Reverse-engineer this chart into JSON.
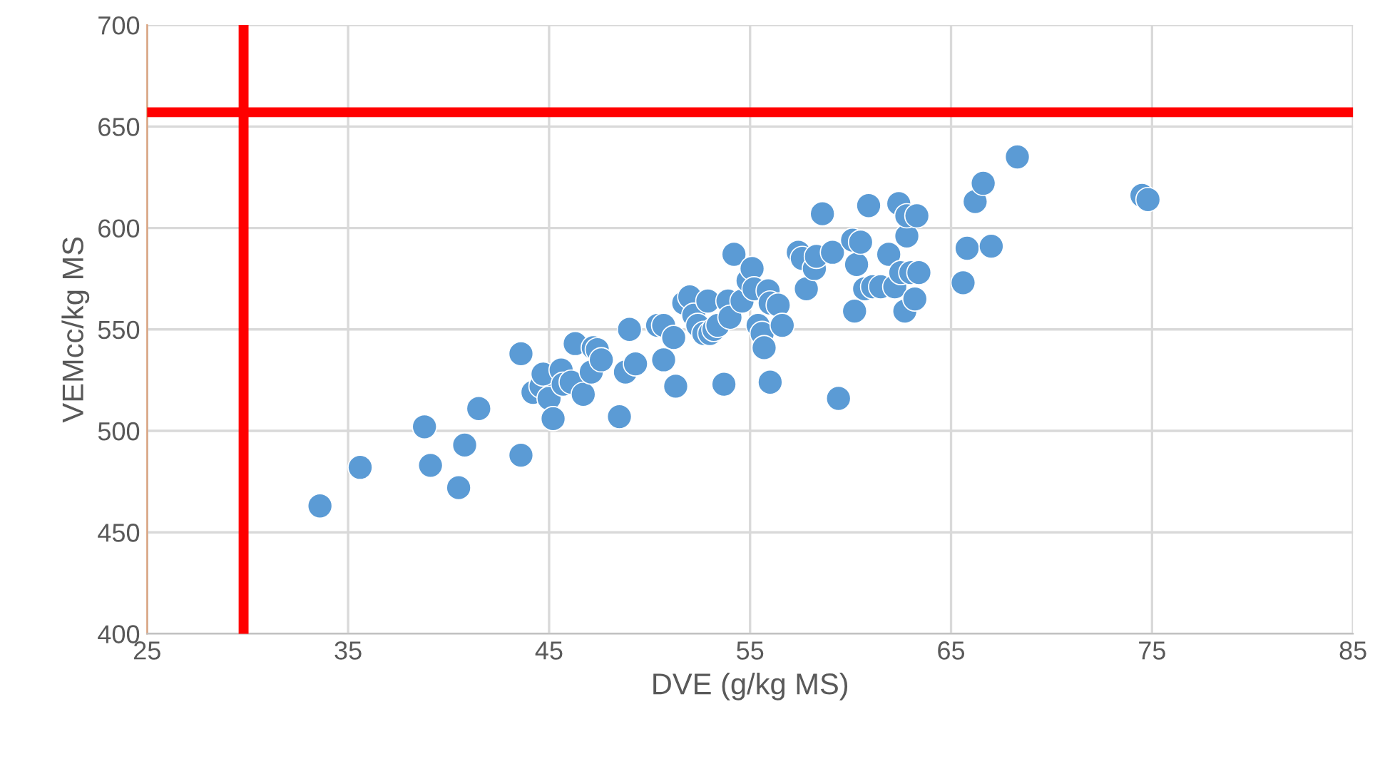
{
  "chart_data": {
    "type": "scatter",
    "xlabel": "DVE (g/kg MS)",
    "ylabel": "VEMcc/kg MS",
    "x": [
      33.6,
      35.6,
      38.8,
      39.1,
      40.5,
      40.8,
      41.5,
      43.6,
      43.6,
      44.2,
      44.6,
      44.7,
      45.0,
      45.2,
      45.6,
      45.7,
      46.1,
      46.3,
      46.7,
      47.1,
      47.2,
      47.4,
      47.6,
      48.5,
      48.8,
      49.0,
      49.3,
      50.4,
      50.7,
      50.7,
      51.2,
      51.3,
      51.7,
      52.0,
      52.2,
      52.4,
      52.7,
      52.9,
      53.0,
      53.2,
      53.4,
      53.7,
      53.9,
      54.0,
      54.2,
      54.6,
      54.9,
      55.1,
      55.2,
      55.4,
      55.6,
      55.7,
      56.0,
      55.9,
      56.0,
      56.4,
      56.6,
      57.4,
      57.6,
      57.8,
      58.2,
      58.3,
      58.6,
      59.1,
      59.4,
      60.1,
      60.2,
      60.3,
      60.5,
      60.7,
      60.9,
      61.1,
      61.5,
      61.9,
      62.2,
      62.4,
      62.5,
      62.7,
      62.8,
      62.8,
      63.0,
      63.2,
      63.3,
      63.4,
      65.6,
      65.8,
      66.2,
      66.6,
      67.0,
      68.3,
      74.5,
      74.8
    ],
    "values": [
      463,
      482,
      502,
      483,
      472,
      493,
      511,
      538,
      488,
      519,
      522,
      528,
      516,
      506,
      530,
      523,
      524,
      543,
      518,
      529,
      541,
      540,
      535,
      507,
      529,
      550,
      533,
      552,
      552,
      535,
      546,
      522,
      563,
      566,
      557,
      552,
      548,
      564,
      548,
      550,
      552,
      523,
      564,
      556,
      587,
      564,
      574,
      580,
      570,
      552,
      548,
      541,
      524,
      569,
      563,
      562,
      552,
      588,
      585,
      570,
      580,
      586,
      607,
      588,
      516,
      594,
      559,
      582,
      593,
      570,
      611,
      571,
      571,
      587,
      571,
      612,
      578,
      559,
      596,
      606,
      578,
      565,
      606,
      578,
      573,
      590,
      613,
      622,
      591,
      635,
      616,
      614
    ],
    "color": "#5b9bd5",
    "marker": "circle",
    "xlim": [
      25,
      85
    ],
    "xticks": [
      25,
      35,
      45,
      55,
      65,
      75,
      85
    ],
    "ylim": [
      400,
      700
    ],
    "yticks": [
      400,
      450,
      500,
      550,
      600,
      650,
      700
    ],
    "grid": true,
    "ref_lines": [
      {
        "axis": "x",
        "value": 29.8,
        "label": null,
        "color": "#ff0000"
      },
      {
        "axis": "y",
        "value": 657,
        "label": null,
        "color": "#ff0000"
      }
    ]
  }
}
